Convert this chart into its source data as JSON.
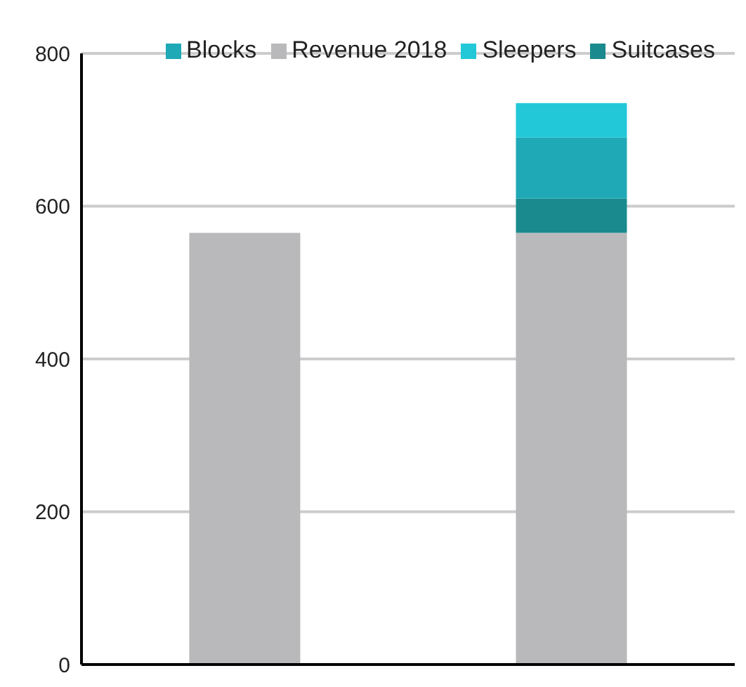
{
  "chart_data": {
    "type": "bar",
    "categories": [
      null,
      null
    ],
    "stacked": true,
    "series": [
      {
        "name": "Revenue 2018",
        "color": "#b9b9bb",
        "values": [
          565,
          565
        ]
      },
      {
        "name": "Suitcases",
        "color": "#1a8a8e",
        "values": [
          null,
          45
        ]
      },
      {
        "name": "Blocks",
        "color": "#1fa9b6",
        "values": [
          null,
          80
        ]
      },
      {
        "name": "Sleepers",
        "color": "#22c8d8",
        "values": [
          null,
          45
        ]
      }
    ],
    "ylim": [
      0,
      800
    ],
    "yticks": [
      0,
      200,
      400,
      600,
      800
    ],
    "grid": "y",
    "legend": "top"
  }
}
